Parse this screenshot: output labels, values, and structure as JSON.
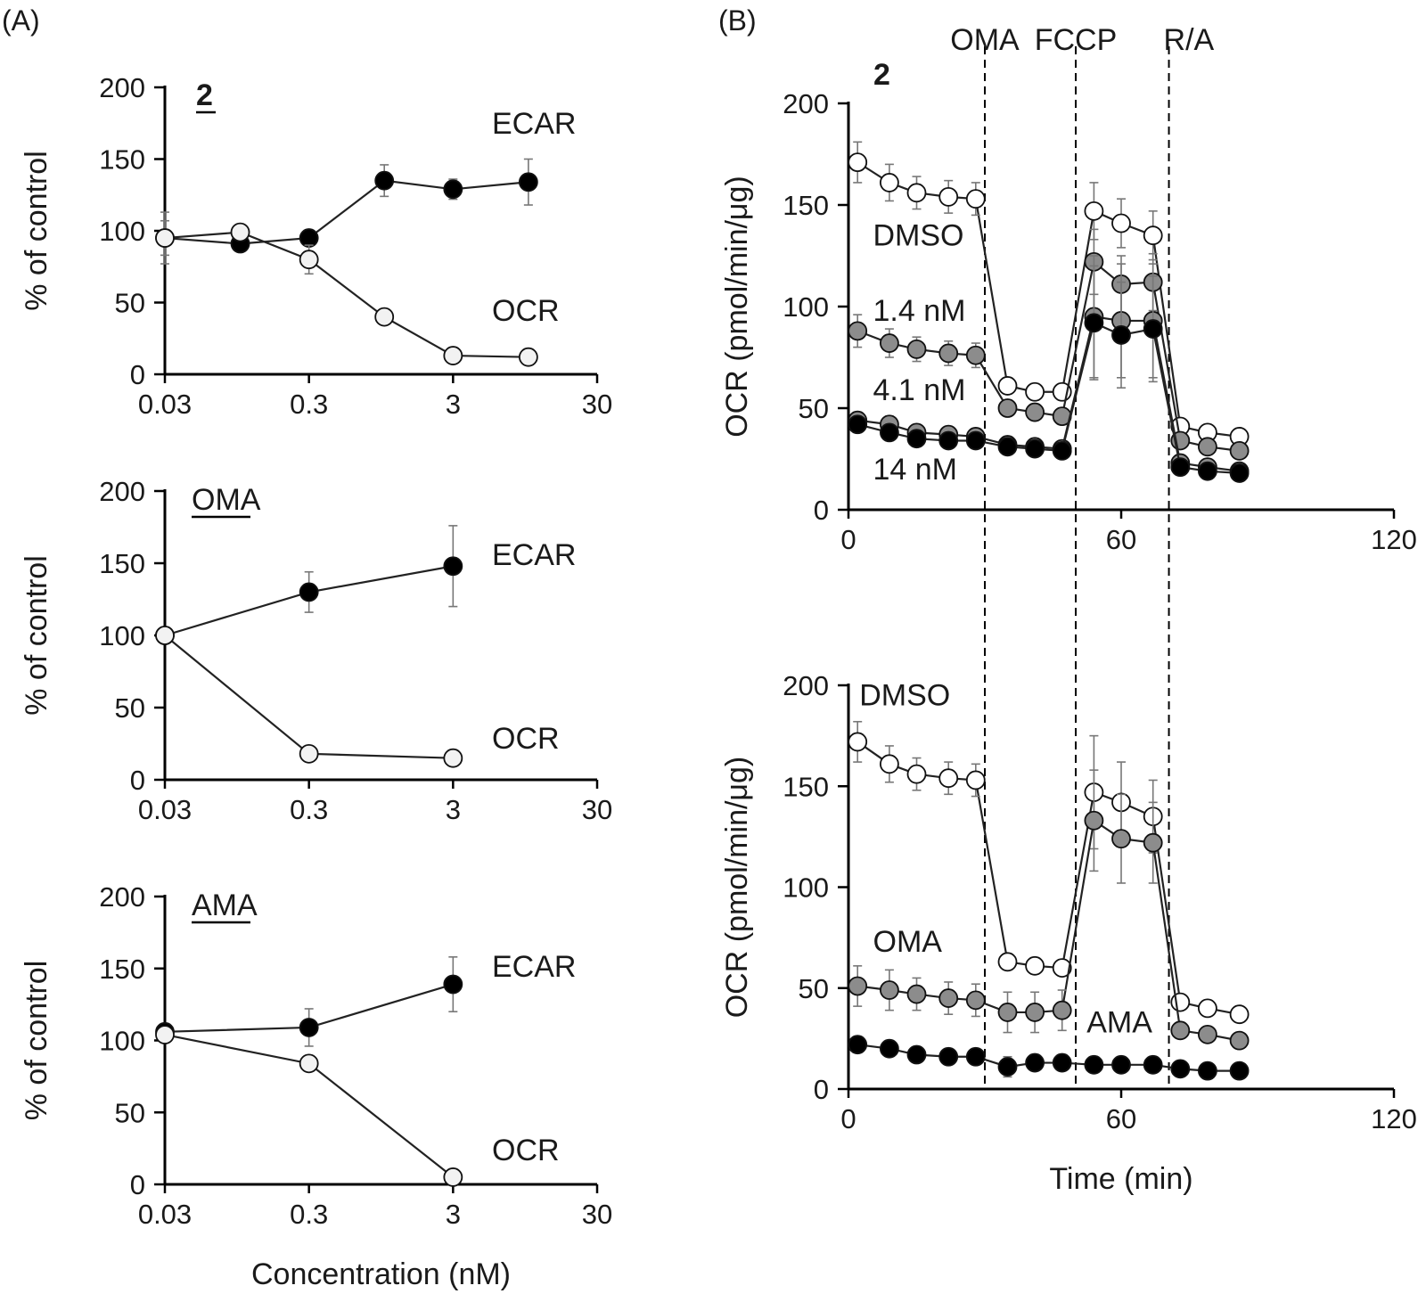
{
  "panel_labels": {
    "A": "(A)",
    "B": "(B)"
  },
  "colors": {
    "open": "#ffffff",
    "light": "#f2f2f2",
    "gray": "#8c8c8c",
    "black": "#000000"
  },
  "chart_data": [
    {
      "id": "a1",
      "type": "line",
      "xscale": "log",
      "title": "2",
      "xlim": [
        0.03,
        30
      ],
      "ylim": [
        0,
        200
      ],
      "xticks": [
        0.03,
        0.3,
        3,
        30
      ],
      "xticklabels": [
        "0.03",
        "0.3",
        "3",
        "30"
      ],
      "yticks": [
        0,
        50,
        100,
        150,
        200
      ],
      "ylabel": "% of control",
      "xlabel": "",
      "series": [
        {
          "name": "ECAR",
          "fill": "black",
          "x": [
            0.03,
            0.1,
            0.3,
            1,
            3,
            10
          ],
          "y": [
            95,
            91,
            95,
            135,
            129,
            134
          ],
          "err": [
            18,
            4,
            4,
            11,
            7,
            16
          ]
        },
        {
          "name": "OCR",
          "fill": "light",
          "x": [
            0.03,
            0.1,
            0.3,
            1,
            3,
            10
          ],
          "y": [
            95,
            99,
            80,
            40,
            13,
            12
          ],
          "err": [
            12,
            3,
            10,
            3,
            2,
            2
          ]
        }
      ]
    },
    {
      "id": "a2",
      "type": "line",
      "xscale": "log",
      "title": "OMA",
      "xlim": [
        0.03,
        30
      ],
      "ylim": [
        0,
        200
      ],
      "xticks": [
        0.03,
        0.3,
        3,
        30
      ],
      "xticklabels": [
        "0.03",
        "0.3",
        "3",
        "30"
      ],
      "yticks": [
        0,
        50,
        100,
        150,
        200
      ],
      "ylabel": "% of control",
      "xlabel": "",
      "series": [
        {
          "name": "ECAR",
          "fill": "black",
          "x": [
            0.03,
            0.3,
            3
          ],
          "y": [
            100,
            130,
            148
          ],
          "err": [
            0,
            14,
            28
          ]
        },
        {
          "name": "OCR",
          "fill": "light",
          "x": [
            0.03,
            0.3,
            3
          ],
          "y": [
            100,
            18,
            15
          ],
          "err": [
            0,
            2,
            2
          ]
        }
      ]
    },
    {
      "id": "a3",
      "type": "line",
      "xscale": "log",
      "title": "AMA",
      "xlim": [
        0.03,
        30
      ],
      "ylim": [
        0,
        200
      ],
      "xticks": [
        0.03,
        0.3,
        3,
        30
      ],
      "xticklabels": [
        "0.03",
        "0.3",
        "3",
        "30"
      ],
      "yticks": [
        0,
        50,
        100,
        150,
        200
      ],
      "ylabel": "% of control",
      "xlabel": "Concentration (nM)",
      "series": [
        {
          "name": "ECAR",
          "fill": "black",
          "x": [
            0.03,
            0.3,
            3
          ],
          "y": [
            106,
            109,
            139
          ],
          "err": [
            0,
            13,
            19
          ]
        },
        {
          "name": "OCR",
          "fill": "light",
          "x": [
            0.03,
            0.3,
            3
          ],
          "y": [
            104,
            84,
            5
          ],
          "err": [
            0,
            3,
            2
          ]
        }
      ]
    },
    {
      "id": "b1",
      "type": "line",
      "xscale": "linear",
      "title": "2",
      "xlim": [
        0,
        120
      ],
      "ylim": [
        0,
        200
      ],
      "xticks": [
        0,
        60,
        120
      ],
      "xticklabels": [
        "0",
        "60",
        "120"
      ],
      "yticks": [
        0,
        50,
        100,
        150,
        200
      ],
      "ylabel": "OCR (pmol/min/μg)",
      "xlabel": "",
      "injections": [
        {
          "label": "OMA",
          "time": 30
        },
        {
          "label": "FCCP",
          "time": 50
        },
        {
          "label": "R/A",
          "time": 70.5
        }
      ],
      "series": [
        {
          "name": "DMSO",
          "fill": "open",
          "x": [
            2,
            9,
            15,
            22,
            28,
            35,
            41,
            47,
            54,
            60,
            67,
            73,
            79,
            86
          ],
          "y": [
            171,
            161,
            156,
            154,
            153,
            61,
            58,
            58,
            147,
            141,
            135,
            41,
            38,
            36
          ],
          "err": [
            10,
            9,
            8,
            8,
            8,
            4,
            4,
            4,
            14,
            12,
            12,
            3,
            3,
            3
          ]
        },
        {
          "name": "1.4 nM",
          "fill": "gray",
          "x": [
            2,
            9,
            15,
            22,
            28,
            35,
            41,
            47,
            54,
            60,
            67,
            73,
            79,
            86
          ],
          "y": [
            88,
            82,
            79,
            77,
            76,
            50,
            48,
            46,
            122,
            111,
            112,
            34,
            31,
            29
          ],
          "err": [
            8,
            7,
            6,
            6,
            6,
            4,
            4,
            4,
            16,
            14,
            14,
            3,
            3,
            3
          ]
        },
        {
          "name": "4.1 nM",
          "fill": "gray",
          "x": [
            2,
            9,
            15,
            22,
            28,
            35,
            41,
            47,
            54,
            60,
            67,
            73,
            79,
            86
          ],
          "y": [
            44,
            42,
            38,
            37,
            36,
            32,
            31,
            30,
            95,
            93,
            93,
            23,
            21,
            19
          ],
          "err": [
            4,
            4,
            3,
            3,
            3,
            3,
            3,
            3,
            30,
            28,
            28,
            3,
            3,
            3
          ]
        },
        {
          "name": "14 nM",
          "fill": "black",
          "x": [
            2,
            9,
            15,
            22,
            28,
            35,
            41,
            47,
            54,
            60,
            67,
            73,
            79,
            86
          ],
          "y": [
            42,
            38,
            35,
            34,
            34,
            31,
            30,
            29,
            92,
            86,
            89,
            21,
            19,
            18
          ],
          "err": [
            4,
            4,
            3,
            3,
            3,
            3,
            3,
            3,
            28,
            26,
            26,
            3,
            3,
            3
          ]
        }
      ],
      "annotations": [
        {
          "text": "DMSO",
          "x": 5,
          "y": 130
        },
        {
          "text": "1.4 nM",
          "x": 5,
          "y": 93
        },
        {
          "text": "4.1 nM",
          "x": 5,
          "y": 54
        },
        {
          "text": "14 nM",
          "x": 5,
          "y": 15
        }
      ]
    },
    {
      "id": "b2",
      "type": "line",
      "xscale": "linear",
      "title": "",
      "xlim": [
        0,
        120
      ],
      "ylim": [
        0,
        200
      ],
      "xticks": [
        0,
        60,
        120
      ],
      "xticklabels": [
        "0",
        "60",
        "120"
      ],
      "yticks": [
        0,
        50,
        100,
        150,
        200
      ],
      "ylabel": "OCR (pmol/min/μg)",
      "xlabel": "Time (min)",
      "series": [
        {
          "name": "DMSO",
          "fill": "open",
          "x": [
            2,
            9,
            15,
            22,
            28,
            35,
            41,
            47,
            54,
            60,
            67,
            73,
            79,
            86
          ],
          "y": [
            172,
            161,
            156,
            154,
            153,
            63,
            61,
            60,
            147,
            142,
            135,
            43,
            40,
            37
          ],
          "err": [
            10,
            9,
            8,
            8,
            8,
            4,
            4,
            4,
            28,
            20,
            18,
            3,
            3,
            3
          ]
        },
        {
          "name": "OMA",
          "fill": "gray",
          "x": [
            2,
            9,
            15,
            22,
            28,
            35,
            41,
            47,
            54,
            60,
            67,
            73,
            79,
            86
          ],
          "y": [
            51,
            49,
            47,
            45,
            44,
            38,
            38,
            39,
            133,
            124,
            122,
            29,
            27,
            24
          ],
          "err": [
            10,
            10,
            8,
            8,
            8,
            10,
            10,
            10,
            25,
            22,
            20,
            3,
            3,
            3
          ]
        },
        {
          "name": "AMA",
          "fill": "black",
          "x": [
            2,
            9,
            15,
            22,
            28,
            35,
            41,
            47,
            54,
            60,
            67,
            73,
            79,
            86
          ],
          "y": [
            22,
            20,
            17,
            16,
            16,
            11,
            13,
            13,
            12,
            12,
            12,
            10,
            9,
            9
          ],
          "err": [
            3,
            3,
            3,
            3,
            3,
            5,
            4,
            4,
            3,
            3,
            3,
            3,
            3,
            3
          ]
        }
      ],
      "annotations": [
        {
          "text": "DMSO",
          "x": 2,
          "y": 190
        },
        {
          "text": "OMA",
          "x": 5,
          "y": 68
        },
        {
          "text": "AMA",
          "x": 52,
          "y": 28
        }
      ]
    }
  ]
}
